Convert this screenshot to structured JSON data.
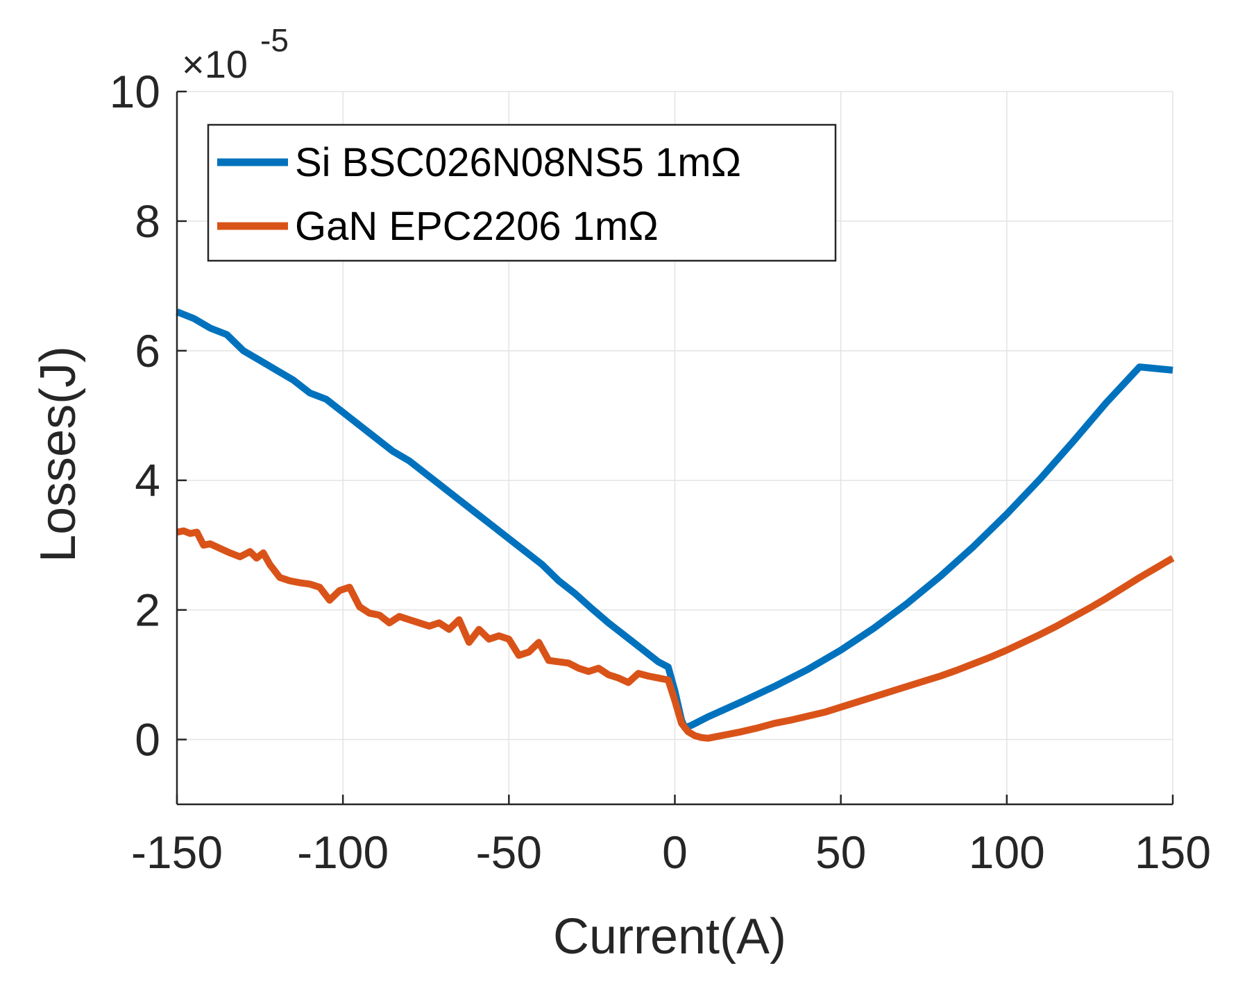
{
  "chart_data": {
    "type": "line",
    "title": "",
    "xlabel": "Current(A)",
    "ylabel": "Losses(J)",
    "y_exponent_label": "×10",
    "y_exponent_power": "-5",
    "xlim": [
      -150,
      150
    ],
    "ylim": [
      -1,
      10
    ],
    "xticks": [
      -150,
      -100,
      -50,
      0,
      50,
      100,
      150
    ],
    "xtick_labels": [
      "-150",
      "-100",
      "-50",
      "0",
      "50",
      "100",
      "150"
    ],
    "yticks": [
      0,
      2,
      4,
      6,
      8,
      10
    ],
    "ytick_labels": [
      "0",
      "2",
      "4",
      "6",
      "8",
      "10"
    ],
    "grid": true,
    "legend_position": "top-left",
    "series": [
      {
        "name": "Si BSC026N08NS5 1mΩ",
        "color": "#0072BD",
        "x": [
          -150,
          -145,
          -140,
          -135,
          -130,
          -125,
          -120,
          -115,
          -110,
          -105,
          -100,
          -95,
          -90,
          -85,
          -80,
          -75,
          -70,
          -65,
          -60,
          -55,
          -50,
          -45,
          -40,
          -35,
          -30,
          -25,
          -20,
          -15,
          -10,
          -5,
          -2,
          0,
          2,
          3,
          5,
          10,
          20,
          30,
          40,
          50,
          60,
          70,
          80,
          90,
          100,
          110,
          120,
          130,
          140,
          150
        ],
        "values": [
          6.6,
          6.5,
          6.35,
          6.25,
          6.0,
          5.85,
          5.7,
          5.55,
          5.35,
          5.25,
          5.05,
          4.85,
          4.65,
          4.45,
          4.3,
          4.1,
          3.9,
          3.7,
          3.5,
          3.3,
          3.1,
          2.9,
          2.7,
          2.45,
          2.25,
          2.02,
          1.8,
          1.6,
          1.4,
          1.2,
          1.12,
          0.75,
          0.3,
          0.18,
          0.22,
          0.35,
          0.58,
          0.82,
          1.08,
          1.38,
          1.72,
          2.1,
          2.52,
          2.98,
          3.48,
          4.02,
          4.6,
          5.2,
          5.75,
          5.7
        ]
      },
      {
        "name": "GaN EPC2206 1mΩ",
        "color": "#D95319",
        "x": [
          -150,
          -148,
          -146,
          -144,
          -142,
          -140,
          -137,
          -134,
          -131,
          -128,
          -126,
          -124,
          -122,
          -119,
          -116,
          -113,
          -110,
          -107,
          -104,
          -101,
          -98,
          -95,
          -92,
          -89,
          -86,
          -83,
          -80,
          -77,
          -74,
          -71,
          -68,
          -65,
          -62,
          -59,
          -56,
          -53,
          -50,
          -47,
          -44,
          -41,
          -38,
          -35,
          -32,
          -29,
          -26,
          -23,
          -20,
          -17,
          -14,
          -11,
          -8,
          -5,
          -2,
          0,
          2,
          4,
          6,
          8,
          10,
          12,
          15,
          20,
          25,
          30,
          35,
          40,
          45,
          50,
          55,
          60,
          65,
          70,
          75,
          80,
          85,
          90,
          95,
          100,
          105,
          110,
          115,
          120,
          125,
          130,
          135,
          140,
          145,
          148,
          150
        ],
        "values": [
          3.2,
          3.22,
          3.18,
          3.2,
          3.0,
          3.02,
          2.95,
          2.88,
          2.82,
          2.9,
          2.8,
          2.88,
          2.7,
          2.5,
          2.45,
          2.42,
          2.4,
          2.35,
          2.15,
          2.3,
          2.35,
          2.05,
          1.95,
          1.92,
          1.8,
          1.9,
          1.85,
          1.8,
          1.75,
          1.8,
          1.7,
          1.85,
          1.5,
          1.7,
          1.55,
          1.6,
          1.55,
          1.3,
          1.35,
          1.5,
          1.22,
          1.2,
          1.18,
          1.1,
          1.05,
          1.1,
          1.0,
          0.95,
          0.88,
          1.02,
          0.98,
          0.95,
          0.92,
          0.6,
          0.25,
          0.12,
          0.06,
          0.03,
          0.02,
          0.04,
          0.07,
          0.12,
          0.18,
          0.25,
          0.3,
          0.36,
          0.42,
          0.5,
          0.58,
          0.66,
          0.74,
          0.82,
          0.9,
          0.98,
          1.07,
          1.17,
          1.27,
          1.38,
          1.5,
          1.62,
          1.75,
          1.89,
          2.03,
          2.18,
          2.34,
          2.5,
          2.65,
          2.74,
          2.8
        ]
      }
    ]
  }
}
